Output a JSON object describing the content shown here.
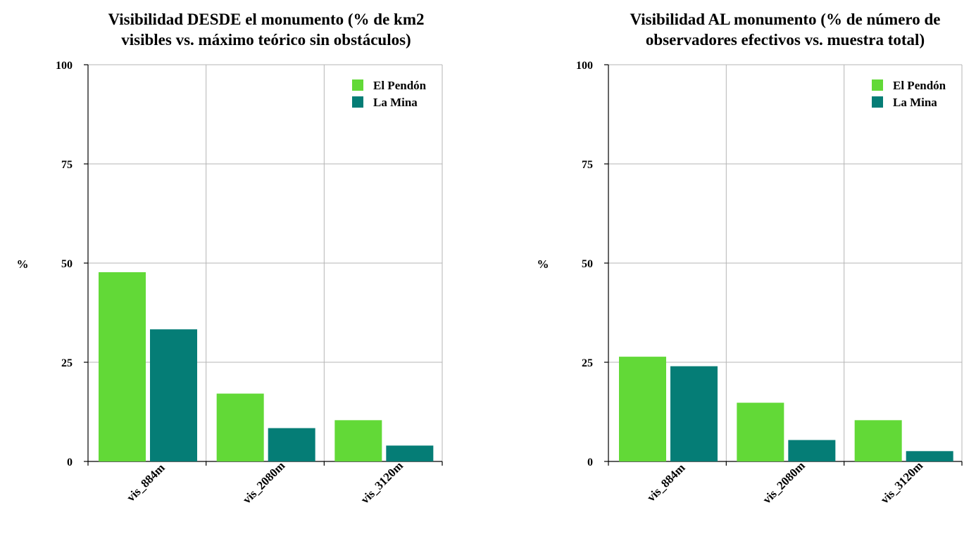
{
  "chart_data": [
    {
      "type": "bar",
      "title": [
        "Visibilidad DESDE el monumento (% de km2",
        "visibles vs. máximo teórico sin obstáculos)"
      ],
      "ylabel": "%",
      "xlabel": "",
      "ylim": [
        0,
        100
      ],
      "yticks": [
        "0",
        "25",
        "50",
        "75",
        "100"
      ],
      "categories": [
        "vis_884m",
        "vis_2080m",
        "vis_3120m"
      ],
      "grid": true,
      "legend_position": "top-right",
      "series": [
        {
          "name": "El Pendón",
          "color": "#62D937",
          "values": [
            47.7,
            17.1,
            10.4
          ]
        },
        {
          "name": "La Mina",
          "color": "#057D76",
          "values": [
            33.3,
            8.4,
            4.0
          ]
        }
      ]
    },
    {
      "type": "bar",
      "title": [
        "Visibilidad AL monumento (% de número de",
        "observadores efectivos vs. muestra total)"
      ],
      "ylabel": "%",
      "xlabel": "",
      "ylim": [
        0,
        100
      ],
      "yticks": [
        "0",
        "25",
        "50",
        "75",
        "100"
      ],
      "categories": [
        "vis_884m",
        "vis_2080m",
        "vis_3120m"
      ],
      "grid": true,
      "legend_position": "top-right",
      "series": [
        {
          "name": "El Pendón",
          "color": "#62D937",
          "values": [
            26.4,
            14.8,
            10.4
          ]
        },
        {
          "name": "La Mina",
          "color": "#057D76",
          "values": [
            24.0,
            5.4,
            2.6
          ]
        }
      ]
    }
  ]
}
